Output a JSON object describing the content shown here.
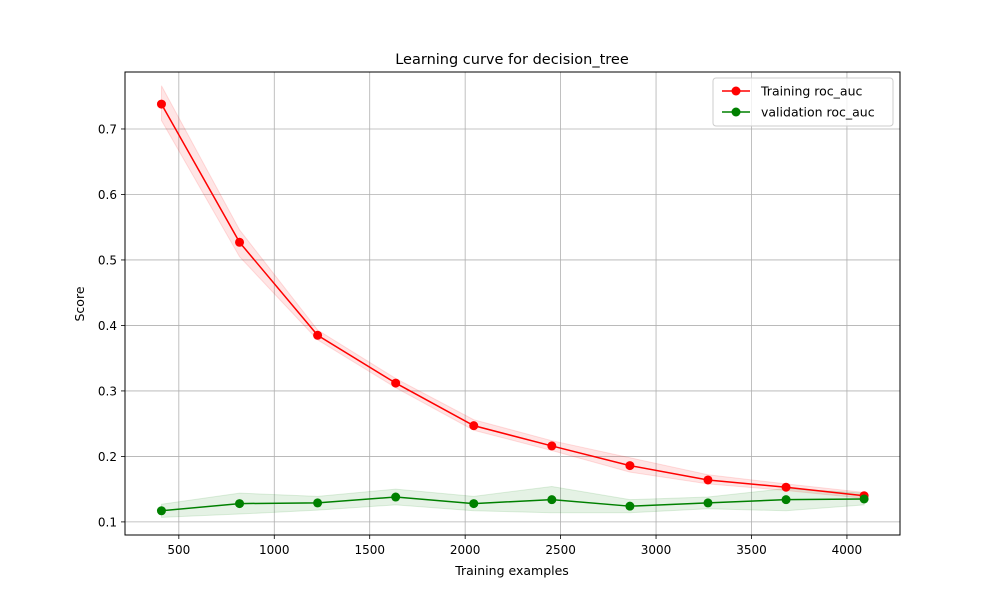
{
  "chart_data": {
    "type": "line",
    "title": "Learning curve for decision_tree",
    "xlabel": "Training examples",
    "ylabel": "Score",
    "xlim": [
      218,
      4278
    ],
    "ylim": [
      0.08,
      0.787
    ],
    "xticks": [
      500,
      1000,
      1500,
      2000,
      2500,
      3000,
      3500,
      4000
    ],
    "yticks": [
      0.1,
      0.2,
      0.3,
      0.4,
      0.5,
      0.6,
      0.7
    ],
    "grid": true,
    "legend_position": "top-right",
    "x": [
      409,
      818,
      1227,
      1636,
      2045,
      2454,
      2863,
      3272,
      3681,
      4090
    ],
    "series": [
      {
        "name": "Training roc_auc",
        "color": "#ff0000",
        "values": [
          0.738,
          0.527,
          0.385,
          0.312,
          0.247,
          0.216,
          0.186,
          0.164,
          0.153,
          0.14
        ],
        "band_lower": [
          0.713,
          0.505,
          0.378,
          0.305,
          0.24,
          0.209,
          0.176,
          0.158,
          0.148,
          0.136
        ],
        "band_upper": [
          0.766,
          0.546,
          0.393,
          0.319,
          0.256,
          0.224,
          0.198,
          0.172,
          0.158,
          0.145
        ]
      },
      {
        "name": "validation roc_auc",
        "color": "#008000",
        "values": [
          0.117,
          0.128,
          0.129,
          0.138,
          0.128,
          0.134,
          0.124,
          0.129,
          0.134,
          0.135
        ],
        "band_lower": [
          0.107,
          0.112,
          0.118,
          0.126,
          0.117,
          0.114,
          0.114,
          0.12,
          0.117,
          0.126
        ],
        "band_upper": [
          0.127,
          0.144,
          0.139,
          0.15,
          0.139,
          0.154,
          0.134,
          0.138,
          0.151,
          0.144
        ]
      }
    ]
  }
}
